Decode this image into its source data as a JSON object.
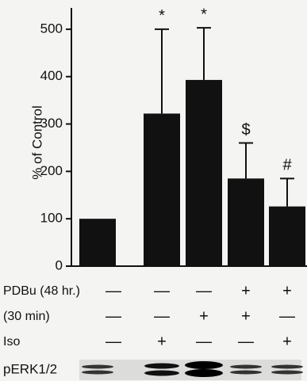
{
  "chart_data": {
    "type": "bar",
    "y_label": "% of Control",
    "values": [
      100,
      322,
      393,
      185,
      126
    ],
    "errors": [
      null,
      178,
      110,
      75,
      59
    ],
    "significance": [
      null,
      "*",
      "*",
      "$",
      "#"
    ],
    "color": "#111111",
    "ylim": [
      0,
      545
    ],
    "yticks": [
      0,
      100,
      200,
      300,
      400,
      500
    ],
    "conditions": [
      {
        "label": "PDBu (48 hr.)",
        "signs": [
          "—",
          "—",
          "—",
          "+",
          "+"
        ]
      },
      {
        "label": "(30 min)",
        "signs": [
          "—",
          "—",
          "+",
          "+",
          "—"
        ]
      },
      {
        "label": "Iso",
        "signs": [
          "—",
          "+",
          "—",
          "—",
          "+"
        ]
      }
    ],
    "blot_label": "pERK1/2"
  }
}
